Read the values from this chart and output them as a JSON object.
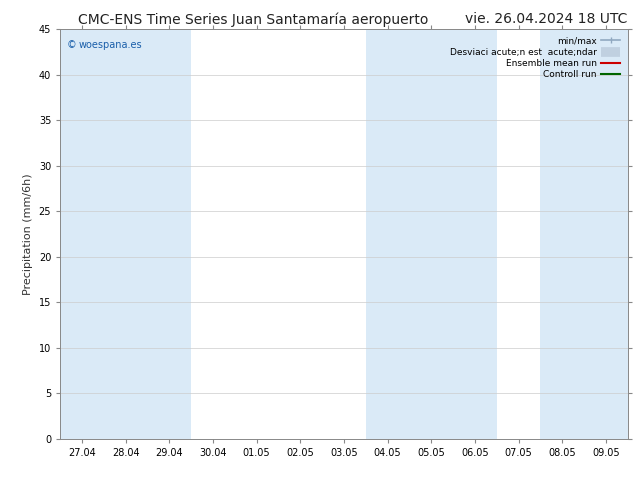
{
  "title": "CMC-ENS Time Series Juan Santamaría aeropuerto",
  "title_right": "vie. 26.04.2024 18 UTC",
  "ylabel": "Precipitation (mm/6h)",
  "ylim": [
    0,
    45
  ],
  "yticks": [
    0,
    5,
    10,
    15,
    20,
    25,
    30,
    35,
    40,
    45
  ],
  "xlabels": [
    "27.04",
    "28.04",
    "29.04",
    "30.04",
    "01.05",
    "02.05",
    "03.05",
    "04.05",
    "05.05",
    "06.05",
    "07.05",
    "08.05",
    "09.05"
  ],
  "plot_bg": "#ffffff",
  "shaded_bands": [
    0,
    1,
    2,
    7,
    8,
    9,
    11,
    12
  ],
  "band_color": "#daeaf7",
  "watermark_text": "woespana.es",
  "watermark_color": "#1a5faa",
  "legend_labels": [
    "min/max",
    "Desviaci acute;n est  acute;ndar",
    "Ensemble mean run",
    "Controll run"
  ],
  "legend_colors": [
    "#90a8c0",
    "#c0d0e0",
    "#cc0000",
    "#006600"
  ],
  "title_fontsize": 10,
  "tick_fontsize": 7,
  "ylabel_fontsize": 8,
  "fig_bg": "#ffffff",
  "border_color": "#888888",
  "grid_color": "#cccccc"
}
